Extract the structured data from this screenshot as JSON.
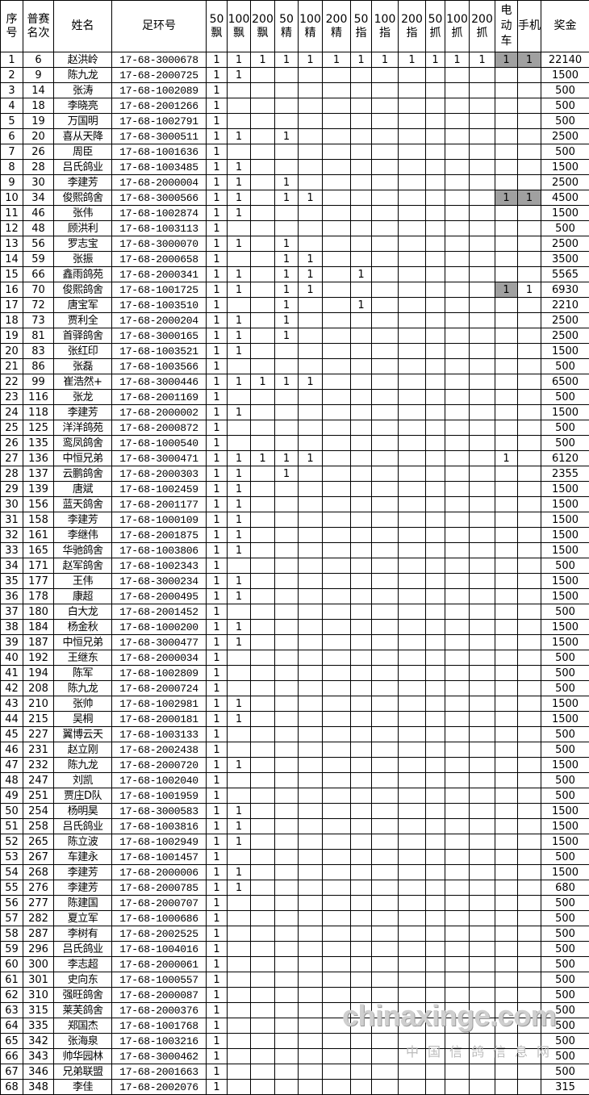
{
  "headers": [
    "序号",
    "普赛名次",
    "姓名",
    "足环号",
    "50飘",
    "100飘",
    "200飘",
    "50精",
    "100精",
    "200精",
    "50指",
    "100指",
    "200指",
    "50抓",
    "100抓",
    "200抓",
    "电动车",
    "手机",
    "奖金"
  ],
  "highlight_color": "#a0a0a0",
  "rows": [
    [
      "1",
      "6",
      "赵洪岭",
      "17-68-3000678",
      "1",
      "1",
      "1",
      "1",
      "1",
      "1",
      "1",
      "1",
      "1",
      "1",
      "1",
      "1",
      "1",
      "1",
      "22140"
    ],
    [
      "2",
      "9",
      "陈九龙",
      "17-68-2000725",
      "1",
      "1",
      "",
      "",
      "",
      "",
      "",
      "",
      "",
      "",
      "",
      "",
      "",
      "",
      "1500"
    ],
    [
      "3",
      "14",
      "张涛",
      "17-68-1002089",
      "1",
      "",
      "",
      "",
      "",
      "",
      "",
      "",
      "",
      "",
      "",
      "",
      "",
      "",
      "500"
    ],
    [
      "4",
      "18",
      "李晓亮",
      "17-68-2001266",
      "1",
      "",
      "",
      "",
      "",
      "",
      "",
      "",
      "",
      "",
      "",
      "",
      "",
      "",
      "500"
    ],
    [
      "5",
      "19",
      "万国明",
      "17-68-1002791",
      "1",
      "",
      "",
      "",
      "",
      "",
      "",
      "",
      "",
      "",
      "",
      "",
      "",
      "",
      "500"
    ],
    [
      "6",
      "20",
      "喜从天降",
      "17-68-3000511",
      "1",
      "1",
      "",
      "1",
      "",
      "",
      "",
      "",
      "",
      "",
      "",
      "",
      "",
      "",
      "2500"
    ],
    [
      "7",
      "26",
      "周臣",
      "17-68-1001636",
      "1",
      "",
      "",
      "",
      "",
      "",
      "",
      "",
      "",
      "",
      "",
      "",
      "",
      "",
      "500"
    ],
    [
      "8",
      "28",
      "吕氏鸽业",
      "17-68-1003485",
      "1",
      "1",
      "",
      "",
      "",
      "",
      "",
      "",
      "",
      "",
      "",
      "",
      "",
      "",
      "1500"
    ],
    [
      "9",
      "30",
      "李建芳",
      "17-68-2000004",
      "1",
      "1",
      "",
      "1",
      "",
      "",
      "",
      "",
      "",
      "",
      "",
      "",
      "",
      "",
      "2500"
    ],
    [
      "10",
      "34",
      "俊熙鸽舍",
      "17-68-3000566",
      "1",
      "1",
      "",
      "1",
      "1",
      "",
      "",
      "",
      "",
      "",
      "",
      "",
      "1",
      "1",
      "4500"
    ],
    [
      "11",
      "46",
      "张伟",
      "17-68-1002874",
      "1",
      "1",
      "",
      "",
      "",
      "",
      "",
      "",
      "",
      "",
      "",
      "",
      "",
      "",
      "1500"
    ],
    [
      "12",
      "48",
      "顾洪利",
      "17-68-1003113",
      "1",
      "",
      "",
      "",
      "",
      "",
      "",
      "",
      "",
      "",
      "",
      "",
      "",
      "",
      "500"
    ],
    [
      "13",
      "56",
      "罗志宝",
      "17-68-3000070",
      "1",
      "1",
      "",
      "1",
      "",
      "",
      "",
      "",
      "",
      "",
      "",
      "",
      "",
      "",
      "2500"
    ],
    [
      "14",
      "59",
      "张振",
      "17-68-2000658",
      "1",
      "",
      "",
      "1",
      "1",
      "",
      "",
      "",
      "",
      "",
      "",
      "",
      "",
      "",
      "3500"
    ],
    [
      "15",
      "66",
      "鑫雨鸽苑",
      "17-68-2000341",
      "1",
      "1",
      "",
      "1",
      "1",
      "",
      "1",
      "",
      "",
      "",
      "",
      "",
      "",
      "",
      "5565"
    ],
    [
      "16",
      "70",
      "俊熙鸽舍",
      "17-68-1001725",
      "1",
      "1",
      "",
      "1",
      "1",
      "",
      "",
      "",
      "",
      "",
      "",
      "",
      "1",
      "1",
      "6930"
    ],
    [
      "17",
      "72",
      "唐宝军",
      "17-68-1003510",
      "1",
      "",
      "",
      "1",
      "",
      "",
      "1",
      "",
      "",
      "",
      "",
      "",
      "",
      "",
      "2210"
    ],
    [
      "18",
      "73",
      "贾利全",
      "17-68-2000204",
      "1",
      "1",
      "",
      "1",
      "",
      "",
      "",
      "",
      "",
      "",
      "",
      "",
      "",
      "",
      "2500"
    ],
    [
      "19",
      "81",
      "首驿鸽舍",
      "17-68-3000165",
      "1",
      "1",
      "",
      "1",
      "",
      "",
      "",
      "",
      "",
      "",
      "",
      "",
      "",
      "",
      "2500"
    ],
    [
      "20",
      "83",
      "张红印",
      "17-68-1003521",
      "1",
      "1",
      "",
      "",
      "",
      "",
      "",
      "",
      "",
      "",
      "",
      "",
      "",
      "",
      "1500"
    ],
    [
      "21",
      "86",
      "张磊",
      "17-68-1003566",
      "1",
      "",
      "",
      "",
      "",
      "",
      "",
      "",
      "",
      "",
      "",
      "",
      "",
      "",
      "500"
    ],
    [
      "22",
      "99",
      "崔浩然+",
      "17-68-3000446",
      "1",
      "1",
      "1",
      "1",
      "1",
      "",
      "",
      "",
      "",
      "",
      "",
      "",
      "",
      "",
      "6500"
    ],
    [
      "23",
      "116",
      "张龙",
      "17-68-2001169",
      "1",
      "",
      "",
      "",
      "",
      "",
      "",
      "",
      "",
      "",
      "",
      "",
      "",
      "",
      "500"
    ],
    [
      "24",
      "118",
      "李建芳",
      "17-68-2000002",
      "1",
      "1",
      "",
      "",
      "",
      "",
      "",
      "",
      "",
      "",
      "",
      "",
      "",
      "",
      "1500"
    ],
    [
      "25",
      "125",
      "洋洋鸽苑",
      "17-68-2000872",
      "1",
      "",
      "",
      "",
      "",
      "",
      "",
      "",
      "",
      "",
      "",
      "",
      "",
      "",
      "500"
    ],
    [
      "26",
      "135",
      "鸾凤鸽舍",
      "17-68-1000540",
      "1",
      "",
      "",
      "",
      "",
      "",
      "",
      "",
      "",
      "",
      "",
      "",
      "",
      "",
      "500"
    ],
    [
      "27",
      "136",
      "中恒兄弟",
      "17-68-3000471",
      "1",
      "1",
      "1",
      "1",
      "1",
      "",
      "",
      "",
      "",
      "",
      "",
      "",
      "1",
      "",
      "6120"
    ],
    [
      "28",
      "137",
      "云鹏鸽舍",
      "17-68-2000303",
      "1",
      "1",
      "",
      "1",
      "",
      "",
      "",
      "",
      "",
      "",
      "",
      "",
      "",
      "",
      "2355"
    ],
    [
      "29",
      "139",
      "唐斌",
      "17-68-1002459",
      "1",
      "1",
      "",
      "",
      "",
      "",
      "",
      "",
      "",
      "",
      "",
      "",
      "",
      "",
      "1500"
    ],
    [
      "30",
      "156",
      "蓝天鸽舍",
      "17-68-2001177",
      "1",
      "1",
      "",
      "",
      "",
      "",
      "",
      "",
      "",
      "",
      "",
      "",
      "",
      "",
      "1500"
    ],
    [
      "31",
      "158",
      "李建芳",
      "17-68-1000109",
      "1",
      "1",
      "",
      "",
      "",
      "",
      "",
      "",
      "",
      "",
      "",
      "",
      "",
      "",
      "1500"
    ],
    [
      "32",
      "161",
      "李继伟",
      "17-68-2001875",
      "1",
      "1",
      "",
      "",
      "",
      "",
      "",
      "",
      "",
      "",
      "",
      "",
      "",
      "",
      "1500"
    ],
    [
      "33",
      "165",
      "华驰鸽舍",
      "17-68-1003806",
      "1",
      "1",
      "",
      "",
      "",
      "",
      "",
      "",
      "",
      "",
      "",
      "",
      "",
      "",
      "1500"
    ],
    [
      "34",
      "171",
      "赵军鸽舍",
      "17-68-1002343",
      "1",
      "",
      "",
      "",
      "",
      "",
      "",
      "",
      "",
      "",
      "",
      "",
      "",
      "",
      "500"
    ],
    [
      "35",
      "177",
      "王伟",
      "17-68-3000234",
      "1",
      "1",
      "",
      "",
      "",
      "",
      "",
      "",
      "",
      "",
      "",
      "",
      "",
      "",
      "1500"
    ],
    [
      "36",
      "178",
      "康超",
      "17-68-2000495",
      "1",
      "1",
      "",
      "",
      "",
      "",
      "",
      "",
      "",
      "",
      "",
      "",
      "",
      "",
      "1500"
    ],
    [
      "37",
      "180",
      "白大龙",
      "17-68-2001452",
      "1",
      "",
      "",
      "",
      "",
      "",
      "",
      "",
      "",
      "",
      "",
      "",
      "",
      "",
      "500"
    ],
    [
      "38",
      "184",
      "杨金秋",
      "17-68-1000200",
      "1",
      "1",
      "",
      "",
      "",
      "",
      "",
      "",
      "",
      "",
      "",
      "",
      "",
      "",
      "1500"
    ],
    [
      "39",
      "187",
      "中恒兄弟",
      "17-68-3000477",
      "1",
      "1",
      "",
      "",
      "",
      "",
      "",
      "",
      "",
      "",
      "",
      "",
      "",
      "",
      "1500"
    ],
    [
      "40",
      "192",
      "王继东",
      "17-68-2000034",
      "1",
      "",
      "",
      "",
      "",
      "",
      "",
      "",
      "",
      "",
      "",
      "",
      "",
      "",
      "500"
    ],
    [
      "41",
      "194",
      "陈军",
      "17-68-1002809",
      "1",
      "",
      "",
      "",
      "",
      "",
      "",
      "",
      "",
      "",
      "",
      "",
      "",
      "",
      "500"
    ],
    [
      "42",
      "208",
      "陈九龙",
      "17-68-2000724",
      "1",
      "",
      "",
      "",
      "",
      "",
      "",
      "",
      "",
      "",
      "",
      "",
      "",
      "",
      "500"
    ],
    [
      "43",
      "210",
      "张帅",
      "17-68-1002981",
      "1",
      "1",
      "",
      "",
      "",
      "",
      "",
      "",
      "",
      "",
      "",
      "",
      "",
      "",
      "1500"
    ],
    [
      "44",
      "215",
      "吴桐",
      "17-68-2000181",
      "1",
      "1",
      "",
      "",
      "",
      "",
      "",
      "",
      "",
      "",
      "",
      "",
      "",
      "",
      "1500"
    ],
    [
      "45",
      "227",
      "翼博云天",
      "17-68-1003133",
      "1",
      "",
      "",
      "",
      "",
      "",
      "",
      "",
      "",
      "",
      "",
      "",
      "",
      "",
      "500"
    ],
    [
      "46",
      "231",
      "赵立刚",
      "17-68-2002438",
      "1",
      "",
      "",
      "",
      "",
      "",
      "",
      "",
      "",
      "",
      "",
      "",
      "",
      "",
      "500"
    ],
    [
      "47",
      "232",
      "陈九龙",
      "17-68-2000720",
      "1",
      "1",
      "",
      "",
      "",
      "",
      "",
      "",
      "",
      "",
      "",
      "",
      "",
      "",
      "1500"
    ],
    [
      "48",
      "247",
      "刘凯",
      "17-68-1002040",
      "1",
      "",
      "",
      "",
      "",
      "",
      "",
      "",
      "",
      "",
      "",
      "",
      "",
      "",
      "500"
    ],
    [
      "49",
      "251",
      "贾庄D队",
      "17-68-1001959",
      "1",
      "",
      "",
      "",
      "",
      "",
      "",
      "",
      "",
      "",
      "",
      "",
      "",
      "",
      "500"
    ],
    [
      "50",
      "254",
      "杨明昊",
      "17-68-3000583",
      "1",
      "1",
      "",
      "",
      "",
      "",
      "",
      "",
      "",
      "",
      "",
      "",
      "",
      "",
      "1500"
    ],
    [
      "51",
      "258",
      "吕氏鸽业",
      "17-68-1003816",
      "1",
      "1",
      "",
      "",
      "",
      "",
      "",
      "",
      "",
      "",
      "",
      "",
      "",
      "",
      "1500"
    ],
    [
      "52",
      "265",
      "陈立波",
      "17-68-1002949",
      "1",
      "1",
      "",
      "",
      "",
      "",
      "",
      "",
      "",
      "",
      "",
      "",
      "",
      "",
      "1500"
    ],
    [
      "53",
      "267",
      "车建永",
      "17-68-1001457",
      "1",
      "",
      "",
      "",
      "",
      "",
      "",
      "",
      "",
      "",
      "",
      "",
      "",
      "",
      "500"
    ],
    [
      "54",
      "268",
      "李建芳",
      "17-68-2000006",
      "1",
      "1",
      "",
      "",
      "",
      "",
      "",
      "",
      "",
      "",
      "",
      "",
      "",
      "",
      "1500"
    ],
    [
      "55",
      "276",
      "李建芳",
      "17-68-2000785",
      "1",
      "1",
      "",
      "",
      "",
      "",
      "",
      "",
      "",
      "",
      "",
      "",
      "",
      "",
      "680"
    ],
    [
      "56",
      "277",
      "陈建国",
      "17-68-2000707",
      "1",
      "",
      "",
      "",
      "",
      "",
      "",
      "",
      "",
      "",
      "",
      "",
      "",
      "",
      "500"
    ],
    [
      "57",
      "282",
      "夏立军",
      "17-68-1000686",
      "1",
      "",
      "",
      "",
      "",
      "",
      "",
      "",
      "",
      "",
      "",
      "",
      "",
      "",
      "500"
    ],
    [
      "58",
      "287",
      "李树有",
      "17-68-2002525",
      "1",
      "",
      "",
      "",
      "",
      "",
      "",
      "",
      "",
      "",
      "",
      "",
      "",
      "",
      "500"
    ],
    [
      "59",
      "296",
      "吕氏鸽业",
      "17-68-1004016",
      "1",
      "",
      "",
      "",
      "",
      "",
      "",
      "",
      "",
      "",
      "",
      "",
      "",
      "",
      "500"
    ],
    [
      "60",
      "300",
      "李志超",
      "17-68-2000061",
      "1",
      "",
      "",
      "",
      "",
      "",
      "",
      "",
      "",
      "",
      "",
      "",
      "",
      "",
      "500"
    ],
    [
      "61",
      "301",
      "史向东",
      "17-68-1000557",
      "1",
      "",
      "",
      "",
      "",
      "",
      "",
      "",
      "",
      "",
      "",
      "",
      "",
      "",
      "500"
    ],
    [
      "62",
      "310",
      "强旺鸽舍",
      "17-68-2000087",
      "1",
      "",
      "",
      "",
      "",
      "",
      "",
      "",
      "",
      "",
      "",
      "",
      "",
      "",
      "500"
    ],
    [
      "63",
      "315",
      "莱芙鸽舍",
      "17-68-2000376",
      "1",
      "",
      "",
      "",
      "",
      "",
      "",
      "",
      "",
      "",
      "",
      "",
      "",
      "",
      "500"
    ],
    [
      "64",
      "335",
      "郑国杰",
      "17-68-1001768",
      "1",
      "",
      "",
      "",
      "",
      "",
      "",
      "",
      "",
      "",
      "",
      "",
      "",
      "",
      "500"
    ],
    [
      "65",
      "342",
      "张海泉",
      "17-68-1003216",
      "1",
      "",
      "",
      "",
      "",
      "",
      "",
      "",
      "",
      "",
      "",
      "",
      "",
      "",
      "500"
    ],
    [
      "66",
      "343",
      "帅华园林",
      "17-68-3000462",
      "1",
      "",
      "",
      "",
      "",
      "",
      "",
      "",
      "",
      "",
      "",
      "",
      "",
      "",
      "500"
    ],
    [
      "67",
      "346",
      "兄弟联盟",
      "17-68-2001663",
      "1",
      "",
      "",
      "",
      "",
      "",
      "",
      "",
      "",
      "",
      "",
      "",
      "",
      "",
      "500"
    ],
    [
      "68",
      "348",
      "李佳",
      "17-68-2002076",
      "1",
      "",
      "",
      "",
      "",
      "",
      "",
      "",
      "",
      "",
      "",
      "",
      "",
      "",
      "315"
    ]
  ],
  "highlighted_cells": [
    {
      "row": "1",
      "columns": [
        "电动车",
        "手机"
      ]
    },
    {
      "row": "10",
      "columns": [
        "电动车",
        "手机"
      ]
    },
    {
      "row": "16",
      "columns": [
        "电动车"
      ]
    }
  ],
  "watermark": {
    "logo": "chinaxinge.com",
    "subtitle": "中国信鸽信息网"
  }
}
